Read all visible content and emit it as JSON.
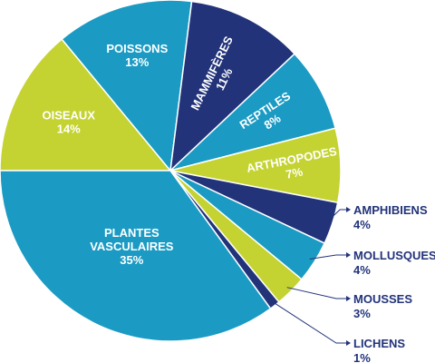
{
  "chart_data": {
    "type": "pie",
    "title": "",
    "start_angle_deg": 180,
    "direction": "clockwise",
    "slices": [
      {
        "name": "OISEAUX",
        "value": 14,
        "label": "14%",
        "color": "#c4d331",
        "text_color": "#ffffff"
      },
      {
        "name": "POISSONS",
        "value": 13,
        "label": "13%",
        "color": "#1b9bc4",
        "text_color": "#ffffff"
      },
      {
        "name": "MAMMIFÈRES",
        "value": 11,
        "label": "11%",
        "color": "#22337a",
        "text_color": "#ffffff"
      },
      {
        "name": "REPTILES",
        "value": 8,
        "label": "8%",
        "color": "#1b9bc4",
        "text_color": "#ffffff"
      },
      {
        "name": "ARTHROPODES",
        "value": 7,
        "label": "7%",
        "color": "#c4d331",
        "text_color": "#ffffff"
      },
      {
        "name": "AMPHIBIENS",
        "value": 4,
        "label": "4%",
        "color": "#22337a",
        "text_color": "#22337a"
      },
      {
        "name": "MOLLUSQUES",
        "value": 4,
        "label": "4%",
        "color": "#1b9bc4",
        "text_color": "#22337a"
      },
      {
        "name": "MOUSSES",
        "value": 3,
        "label": "3%",
        "color": "#c4d331",
        "text_color": "#22337a"
      },
      {
        "name": "LICHENS",
        "value": 1,
        "label": "1%",
        "color": "#22337a",
        "text_color": "#22337a"
      },
      {
        "name": "PLANTES VASCULAIRES",
        "value": 35,
        "label": "35%",
        "color": "#1b9bc4",
        "text_color": "#ffffff"
      }
    ],
    "outside_labels": [
      "AMPHIBIENS",
      "MOLLUSQUES",
      "MOUSSES",
      "LICHENS"
    ]
  }
}
